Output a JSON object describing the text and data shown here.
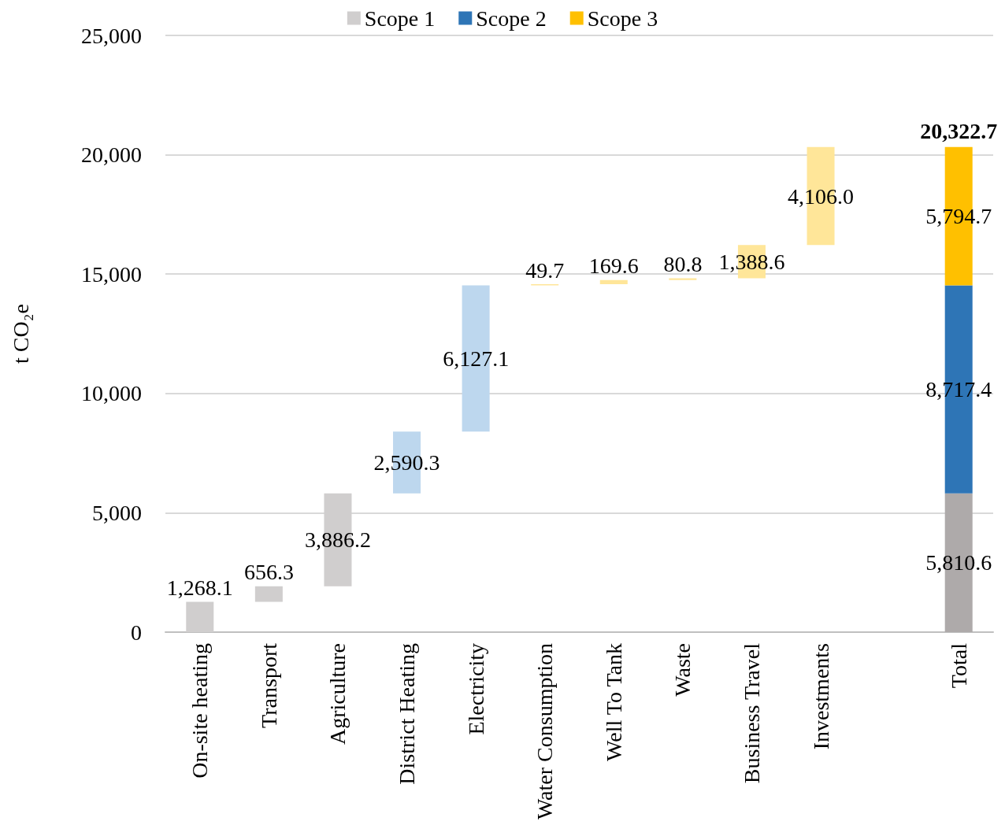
{
  "chart_data": {
    "type": "bar",
    "ylabel": "t CO₂e",
    "categories": [
      "On-site heating",
      "Transport",
      "Agriculture",
      "District Heating",
      "Electricity",
      "Water Consumption",
      "Well To Tank",
      "Waste",
      "Business Travel",
      "Investments",
      null,
      "Total"
    ],
    "series": [
      {
        "name": "Scope 1",
        "color": "#d0cece",
        "values": [
          1268.1,
          656.3,
          3886.2,
          null,
          null,
          null,
          null,
          null,
          null,
          null,
          null,
          5810.6
        ],
        "base": [
          0,
          1268.1,
          1924.4,
          null,
          null,
          null,
          null,
          null,
          null,
          null,
          null,
          0
        ],
        "colors": [
          "#d0cece",
          "#d0cece",
          "#d0cece",
          null,
          null,
          null,
          null,
          null,
          null,
          null,
          null,
          "#aeaaaa"
        ],
        "value_labels": [
          "1,268.1",
          "656.3",
          "3,886.2",
          null,
          null,
          null,
          null,
          null,
          null,
          null,
          null,
          "5,810.6"
        ]
      },
      {
        "name": "Scope 2",
        "color": "#2e75b6",
        "values": [
          null,
          null,
          null,
          2590.3,
          6127.1,
          null,
          null,
          null,
          null,
          null,
          null,
          8717.4
        ],
        "base": [
          null,
          null,
          null,
          5810.6,
          8400.9,
          null,
          null,
          null,
          null,
          null,
          null,
          5810.6
        ],
        "colors": [
          null,
          null,
          null,
          "#bdd7ee",
          "#bdd7ee",
          null,
          null,
          null,
          null,
          null,
          null,
          "#2e75b6"
        ],
        "value_labels": [
          null,
          null,
          null,
          "2,590.3",
          "6,127.1",
          null,
          null,
          null,
          null,
          null,
          null,
          "8,717.4"
        ]
      },
      {
        "name": "Scope 3",
        "color": "#ffc000",
        "values": [
          null,
          null,
          null,
          null,
          null,
          49.7,
          169.6,
          80.8,
          1388.6,
          4106.0,
          null,
          5794.7
        ],
        "base": [
          null,
          null,
          null,
          null,
          null,
          14528.0,
          14577.7,
          14747.3,
          14828.1,
          16216.7,
          null,
          14528.0
        ],
        "colors": [
          null,
          null,
          null,
          null,
          null,
          "#ffe699",
          "#ffe699",
          "#ffe699",
          "#ffe699",
          "#ffe699",
          null,
          "#ffc000"
        ],
        "value_labels": [
          null,
          null,
          null,
          null,
          null,
          "49.7",
          "169.6",
          "80.8",
          "1,388.6",
          "4,106.0",
          null,
          "5,794.7"
        ]
      }
    ],
    "totals": [
      null,
      null,
      null,
      null,
      null,
      null,
      null,
      null,
      null,
      null,
      null,
      "20,322.7"
    ],
    "ylim": [
      0,
      25000
    ],
    "yticks": [
      {
        "value": 0,
        "label": "0"
      },
      {
        "value": 5000,
        "label": "5,000"
      },
      {
        "value": 10000,
        "label": "10,000"
      },
      {
        "value": 15000,
        "label": "15,000"
      },
      {
        "value": 20000,
        "label": "20,000"
      },
      {
        "value": 25000,
        "label": "25,000"
      }
    ],
    "grid": "y",
    "legend": "top"
  }
}
